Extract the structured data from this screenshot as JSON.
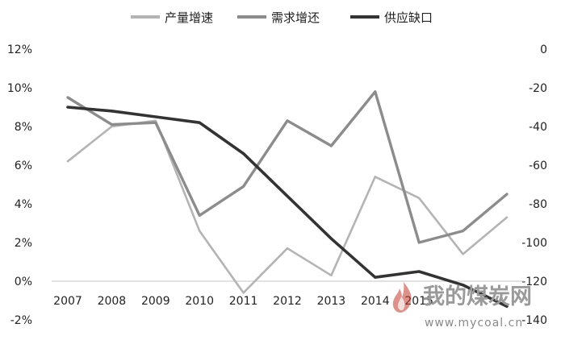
{
  "chart_data": {
    "type": "line",
    "categories": [
      "2007",
      "2008",
      "2009",
      "2010",
      "2011",
      "2012",
      "2013",
      "2014",
      "2015",
      "2016",
      "2017"
    ],
    "x_tick_labels": [
      "2007",
      "2008",
      "2009",
      "2010",
      "2011",
      "2012",
      "2013",
      "2014",
      "2015",
      "",
      ""
    ],
    "left_axis": {
      "ylim": [
        -2,
        12
      ],
      "tick_labels": [
        "-2%",
        "0%",
        "2%",
        "4%",
        "6%",
        "8%",
        "10%",
        "12%"
      ]
    },
    "right_axis": {
      "ylim": [
        -140,
        0
      ],
      "tick_labels": [
        "-140",
        "-120",
        "-100",
        "-80",
        "-60",
        "-40",
        "-20",
        "0"
      ]
    },
    "series": [
      {
        "name": "产量增速",
        "axis": "left",
        "color": "#b4b4b4",
        "values": [
          6.2,
          8.0,
          8.3,
          2.6,
          -0.6,
          1.7,
          0.3,
          5.4,
          4.3,
          1.4,
          3.3
        ]
      },
      {
        "name": "需求增还",
        "axis": "left",
        "color": "#8c8c8c",
        "values": [
          9.5,
          8.1,
          8.2,
          3.4,
          4.9,
          8.3,
          7.0,
          9.8,
          2.0,
          2.6,
          4.5
        ]
      },
      {
        "name": "供应缺口",
        "axis": "right",
        "color": "#333333",
        "values": [
          -30,
          -32,
          -35,
          -38,
          -54,
          -76,
          -98,
          -118,
          -115,
          -122,
          -133
        ]
      }
    ],
    "legend_position": "top",
    "grid": false
  },
  "watermark": {
    "brand_text": "我的煤炭网",
    "url": "www.mycoal.cn"
  }
}
